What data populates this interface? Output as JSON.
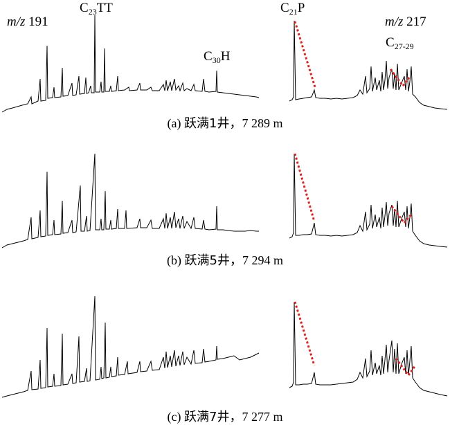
{
  "header": {
    "mz191_italic": "m/z",
    "mz191_value": "191",
    "c23_base": "C",
    "c23_sub": "23",
    "c23_rest": "TT",
    "c21_base": "C",
    "c21_sub": "21",
    "c21_rest": "P",
    "mz217_italic": "m/z",
    "mz217_value": "217",
    "c30_base": "C",
    "c30_sub": "30",
    "c30_rest": "H",
    "c2729_base": "C",
    "c2729_sub": "27-29"
  },
  "panels": [
    {
      "caption_tag": "(a)",
      "caption_well": "跃满1井",
      "caption_depth": "，7 289 m"
    },
    {
      "caption_tag": "(b)",
      "caption_well": "跃满5井",
      "caption_depth": "，7 294 m"
    },
    {
      "caption_tag": "(c)",
      "caption_well": "跃满7井",
      "caption_depth": "，7 277 m"
    }
  ],
  "colors": {
    "trace": "#000000",
    "dotted_marker": "#e0201a"
  }
}
